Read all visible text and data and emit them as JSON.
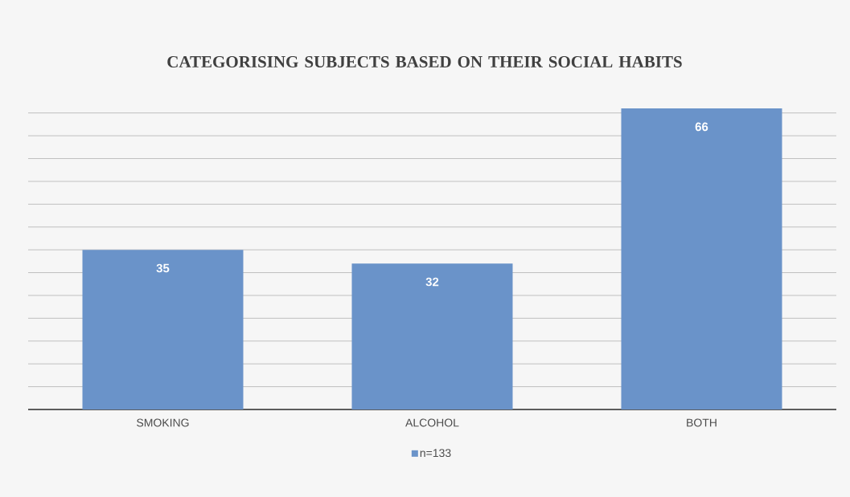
{
  "chart_data": {
    "type": "bar",
    "title": "CATEGORISING SUBJECTS BASED ON THEIR SOCIAL HABITS",
    "categories": [
      "SMOKING",
      "ALCOHOL",
      "BOTH"
    ],
    "series": [
      {
        "name": "n=133",
        "color": "#6a93c9",
        "values": [
          35,
          32,
          66
        ]
      }
    ],
    "tick_labels": "x",
    "grid": "y",
    "legend": "bottom",
    "data_labels": true
  }
}
